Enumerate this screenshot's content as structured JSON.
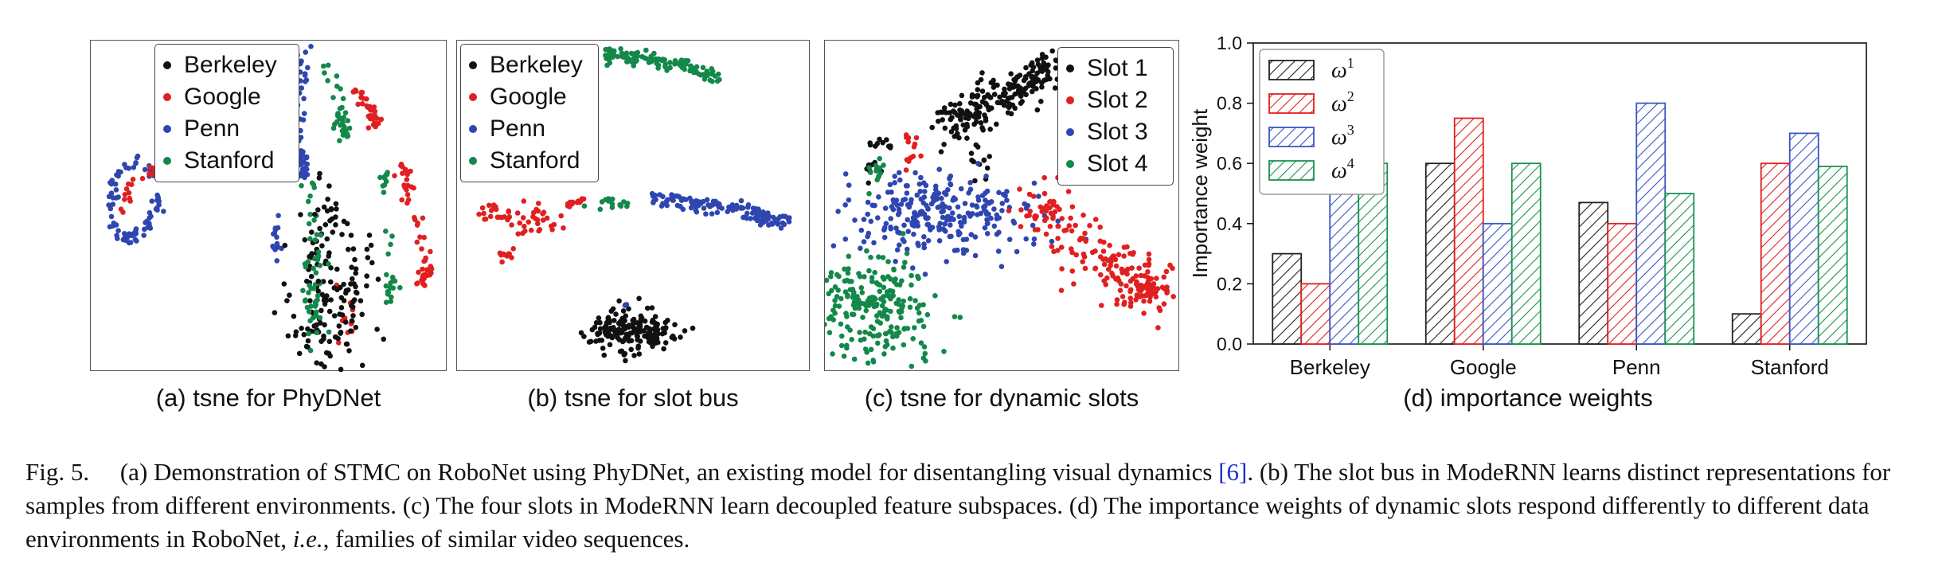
{
  "panels": [
    {
      "caption": "(a) tsne for PhyDNet",
      "legend": [
        {
          "label": "Berkeley",
          "color": "#111111"
        },
        {
          "label": "Google",
          "color": "#e02020"
        },
        {
          "label": "Penn",
          "color": "#2f46b0"
        },
        {
          "label": "Stanford",
          "color": "#13884a"
        }
      ]
    },
    {
      "caption": "(b) tsne for slot bus",
      "legend": [
        {
          "label": "Berkeley",
          "color": "#111111"
        },
        {
          "label": "Google",
          "color": "#e02020"
        },
        {
          "label": "Penn",
          "color": "#2f46b0"
        },
        {
          "label": "Stanford",
          "color": "#13884a"
        }
      ]
    },
    {
      "caption": "(c) tsne for dynamic slots",
      "legend": [
        {
          "label": "Slot 1",
          "color": "#111111"
        },
        {
          "label": "Slot 2",
          "color": "#e02020"
        },
        {
          "label": "Slot 3",
          "color": "#2f46b0"
        },
        {
          "label": "Slot 4",
          "color": "#13884a"
        }
      ]
    }
  ],
  "chart_data": {
    "type": "bar",
    "caption": "(d) importance weights",
    "ylabel": "Importance weight",
    "ylim": [
      0,
      1.0
    ],
    "yticks": [
      "0.0",
      "0.2",
      "0.4",
      "0.6",
      "0.8",
      "1.0"
    ],
    "categories": [
      "Berkeley",
      "Google",
      "Penn",
      "Stanford"
    ],
    "legend_position": "top-left",
    "grid": false,
    "hatched": true,
    "series": [
      {
        "name": "ω1",
        "base": "ω",
        "sup": "1",
        "color": "#222222",
        "values": [
          0.3,
          0.6,
          0.47,
          0.1
        ]
      },
      {
        "name": "ω2",
        "base": "ω",
        "sup": "2",
        "color": "#e02020",
        "values": [
          0.2,
          0.75,
          0.4,
          0.6
        ]
      },
      {
        "name": "ω3",
        "base": "ω",
        "sup": "3",
        "color": "#3a55c4",
        "values": [
          0.5,
          0.4,
          0.8,
          0.7
        ]
      },
      {
        "name": "ω4",
        "base": "ω",
        "sup": "4",
        "color": "#1a9350",
        "values": [
          0.6,
          0.6,
          0.5,
          0.59
        ]
      }
    ]
  },
  "figure_caption": {
    "label": "Fig. 5.",
    "text_a": "(a) Demonstration of STMC on RoboNet using PhyDNet, an existing model for disentangling visual dynamics",
    "ref": "[6]",
    "text_b": ". (b) The slot bus in ModeRNN learns distinct representations for samples from different environments. (c) The four slots in ModeRNN learn decoupled feature subspaces. (d) The importance weights of dynamic slots respond differently to different data environments in RoboNet,",
    "ie": "i.e.",
    "text_c": ", families of similar video sequences."
  }
}
